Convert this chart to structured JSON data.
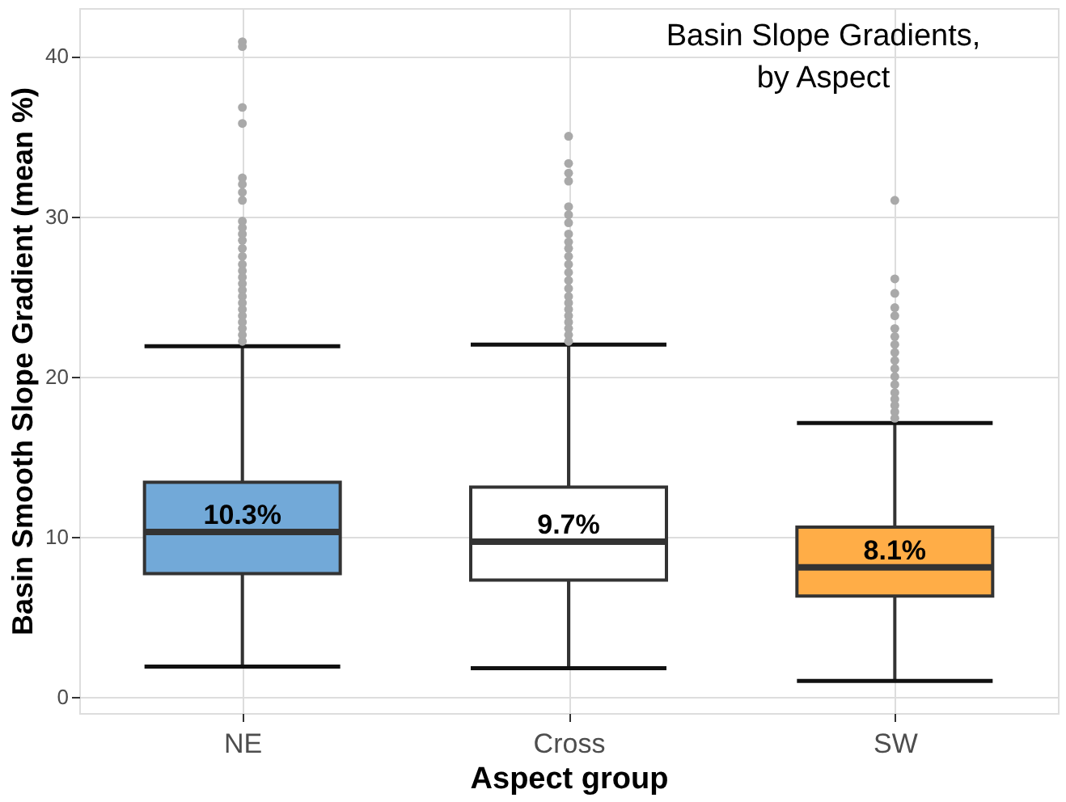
{
  "chart_data": {
    "type": "box",
    "title": "Basin Slope Gradients,\nby Aspect",
    "xlabel": "Aspect group",
    "ylabel": "Basin Smooth Slope Gradient (mean %)",
    "categories": [
      "NE",
      "Cross",
      "SW"
    ],
    "boxes": [
      {
        "low": 1.9,
        "q1": 7.7,
        "median": 10.3,
        "q3": 13.4,
        "high": 21.9,
        "outliers": [
          40.9,
          40.6,
          36.8,
          35.8,
          32.4,
          32.0,
          31.5,
          31.0,
          29.7,
          29.3,
          28.9,
          28.5,
          28.0,
          27.5,
          27.0,
          26.6,
          26.2,
          25.8,
          25.4,
          25.0,
          24.6,
          24.2,
          23.8,
          23.4,
          23.0,
          22.6,
          22.2
        ]
      },
      {
        "low": 1.8,
        "q1": 7.3,
        "median": 9.7,
        "q3": 13.1,
        "high": 22.0,
        "outliers": [
          35.0,
          33.3,
          32.7,
          32.2,
          30.6,
          30.1,
          29.6,
          28.9,
          28.4,
          28.0,
          27.5,
          27.0,
          26.5,
          26.0,
          25.5,
          25.0,
          24.6,
          24.2,
          23.8,
          23.4,
          23.0,
          22.6,
          22.2
        ]
      },
      {
        "low": 1.0,
        "q1": 6.3,
        "median": 8.1,
        "q3": 10.6,
        "high": 17.1,
        "outliers": [
          31.0,
          26.1,
          25.2,
          24.3,
          23.8,
          23.0,
          22.5,
          22.0,
          21.5,
          21.0,
          20.5,
          20.0,
          19.5,
          19.0,
          18.6,
          18.2,
          17.8,
          17.4
        ]
      }
    ],
    "colors": [
      "#72a9d8",
      "#ffffff",
      "#ffad47"
    ],
    "value_labels": [
      "10.3%",
      "9.7%",
      "8.1%"
    ],
    "ylim": [
      -1,
      43
    ],
    "yticks": [
      0,
      10,
      20,
      30,
      40
    ],
    "grid": true
  }
}
